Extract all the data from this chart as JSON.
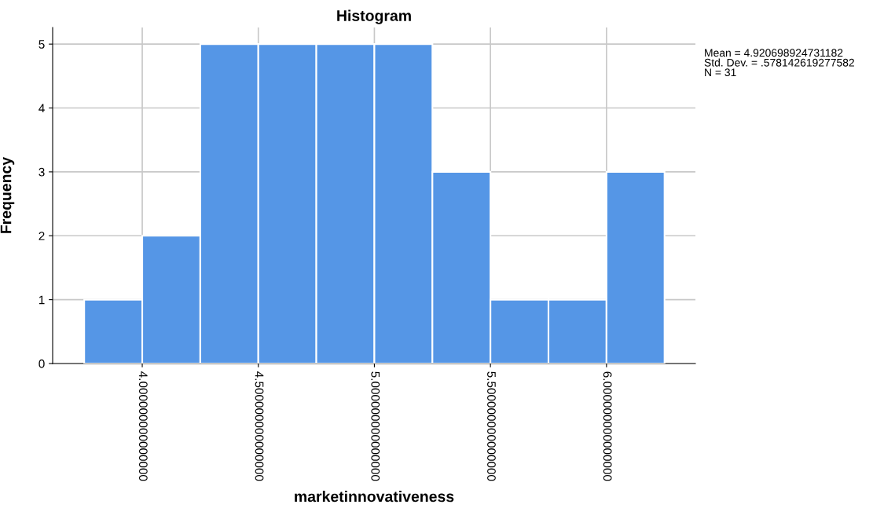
{
  "chart_data": {
    "type": "histogram",
    "title": "Histogram",
    "xlabel": "marketinnovativeness",
    "ylabel": "Frequency",
    "bins": [
      3.75,
      4.0,
      4.25,
      4.5,
      4.75,
      5.0,
      5.25,
      5.5,
      5.75,
      6.0,
      6.25
    ],
    "values": [
      1,
      2,
      5,
      5,
      5,
      5,
      3,
      1,
      1,
      3
    ],
    "color": "#5596e6",
    "xlim": [
      3.614,
      6.383
    ],
    "ylim": [
      0,
      5.26
    ],
    "xticks": [
      {
        "value": 4.0,
        "label": "4.000000000000000"
      },
      {
        "value": 4.5,
        "label": "4.500000000000000"
      },
      {
        "value": 5.0,
        "label": "5.000000000000000"
      },
      {
        "value": 5.5,
        "label": "5.500000000000000"
      },
      {
        "value": 6.0,
        "label": "6.000000000000000"
      }
    ],
    "yticks": [
      0,
      1,
      2,
      3,
      4,
      5
    ],
    "grid": true,
    "annotations": [
      "Mean = 4.920698924731182\nStd. Dev. = .578142619277582\nN = 31"
    ]
  }
}
